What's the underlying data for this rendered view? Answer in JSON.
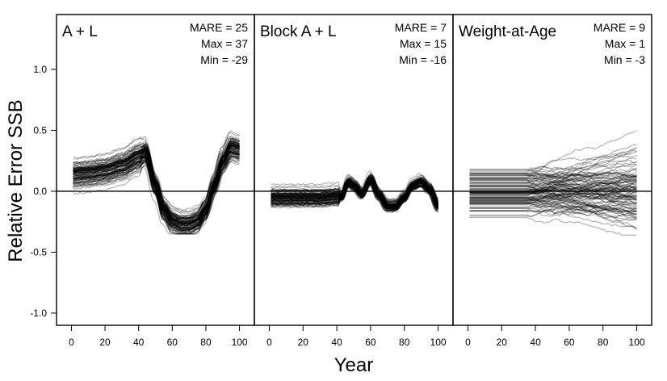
{
  "chart_data": {
    "type": "line",
    "ylabel": "Relative Error SSB",
    "xlabel": "Year",
    "ylim": [
      -1.1,
      1.45
    ],
    "y_ticks": [
      -1.0,
      -0.5,
      0.0,
      0.5,
      1.0
    ],
    "y_tick_labels": [
      "-1.0",
      "-0.5",
      "0.0",
      "0.5",
      "1.0"
    ],
    "reference_line": 0,
    "grid": false,
    "n_lines_per_panel": 100,
    "panels": [
      {
        "title": "A + L",
        "stats": [
          "MARE = 25",
          "Max = 37",
          "Min = -29"
        ],
        "xlim": [
          -5,
          105
        ],
        "x_ticks": [
          0,
          20,
          40,
          60,
          80,
          100
        ],
        "x_tick_labels": [
          "0",
          "20",
          "40",
          "60",
          "80",
          "100"
        ],
        "median_curve": {
          "x": [
            1,
            10,
            20,
            30,
            40,
            44,
            50,
            55,
            60,
            65,
            70,
            75,
            80,
            85,
            90,
            95,
            100
          ],
          "y": [
            0.14,
            0.15,
            0.17,
            0.21,
            0.28,
            0.32,
            0.05,
            -0.15,
            -0.24,
            -0.27,
            -0.27,
            -0.24,
            -0.15,
            0.05,
            0.25,
            0.36,
            0.34
          ]
        },
        "envelope": {
          "upper": 0.59,
          "lower": -0.35
        }
      },
      {
        "title": "Block A + L",
        "stats": [
          "MARE = 7",
          "Max = 15",
          "Min = -16"
        ],
        "xlim": [
          -5,
          105
        ],
        "x_ticks": [
          0,
          20,
          40,
          60,
          80,
          100
        ],
        "x_tick_labels": [
          "0",
          "20",
          "40",
          "60",
          "80",
          "100"
        ],
        "median_curve": {
          "x": [
            1,
            10,
            20,
            30,
            40,
            43,
            47,
            50,
            55,
            60,
            65,
            70,
            75,
            80,
            85,
            90,
            95,
            100
          ],
          "y": [
            -0.05,
            -0.05,
            -0.05,
            -0.05,
            -0.04,
            -0.04,
            0.08,
            0.05,
            -0.02,
            0.1,
            -0.03,
            -0.12,
            -0.12,
            -0.05,
            0.05,
            0.08,
            0.02,
            -0.12
          ]
        },
        "envelope": {
          "upper": 0.29,
          "lower": -0.39
        }
      },
      {
        "title": "Weight-at-Age",
        "stats": [
          "MARE = 9",
          "Max = 1",
          "Min = -3"
        ],
        "xlim": [
          -5,
          105
        ],
        "x_ticks": [
          0,
          20,
          40,
          60,
          80,
          100
        ],
        "x_tick_labels": [
          "0",
          "20",
          "40",
          "60",
          "80",
          "100"
        ],
        "median_curve": {
          "x": [
            1,
            20,
            40,
            60,
            80,
            100
          ],
          "y": [
            0.0,
            0.0,
            0.0,
            0.0,
            0.0,
            0.0
          ]
        },
        "envelope": {
          "upper": 0.7,
          "lower": -0.36
        }
      }
    ]
  }
}
